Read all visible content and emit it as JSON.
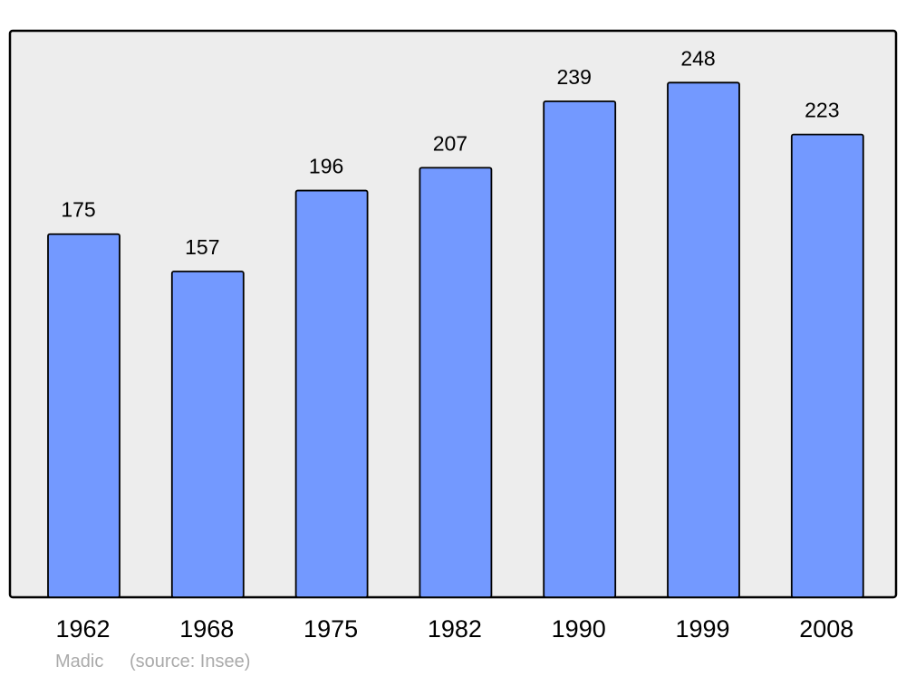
{
  "chart_data": {
    "type": "bar",
    "categories": [
      "1962",
      "1968",
      "1975",
      "1982",
      "1990",
      "1999",
      "2008"
    ],
    "values": [
      175,
      157,
      196,
      207,
      239,
      248,
      223
    ],
    "data_labels": [
      "175",
      "157",
      "196",
      "207",
      "239",
      "248",
      "223"
    ],
    "title": "",
    "xlabel": "",
    "ylabel": "",
    "ylim": [
      0,
      273
    ],
    "grid": false,
    "colors": {
      "bar": "#7399ff",
      "plot_background": "#ededed",
      "border": "#000000",
      "credit": "#aaaaaa"
    }
  },
  "credit": {
    "author": "Madic",
    "source": "(source: Insee)"
  }
}
